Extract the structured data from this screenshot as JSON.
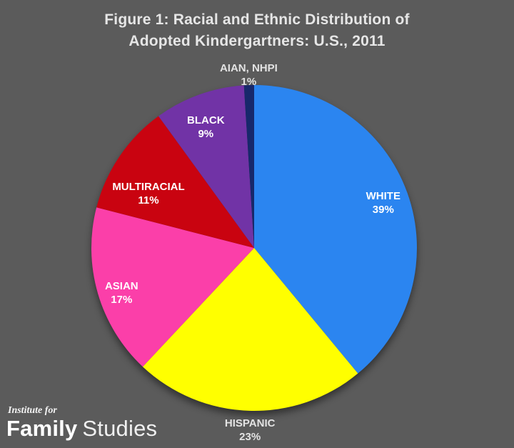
{
  "title": {
    "line1": "Figure 1: Racial and Ethnic Distribution of",
    "line2": "Adopted Kindergartners: U.S., 2011"
  },
  "chart_data": {
    "type": "pie",
    "title": "Figure 1: Racial and Ethnic Distribution of Adopted Kindergartners: U.S., 2011",
    "units": "percent",
    "legend_position": "none",
    "labels_on_slices": true,
    "start": "12 o'clock, clockwise",
    "categories": [
      "WHITE",
      "HISPANIC",
      "ASIAN",
      "MULTIRACIAL",
      "BLACK",
      "AIAN, NHPI"
    ],
    "values": [
      39,
      23,
      17,
      11,
      9,
      1
    ],
    "slices": [
      {
        "label": "WHITE",
        "value": 39,
        "pct_label": "39%",
        "color": "#2B85F0",
        "label_r": 0.84,
        "label_da": 0.5,
        "outside": false
      },
      {
        "label": "HISPANIC",
        "value": 23,
        "pct_label": "23%",
        "color": "#FFFF00",
        "label_r": 1.12,
        "label_da": -0.5,
        "outside": true
      },
      {
        "label": "ASIAN",
        "value": 17,
        "pct_label": "17%",
        "color": "#FB3FA9",
        "label_r": 0.86,
        "label_da": -2.5,
        "outside": false
      },
      {
        "label": "MULTIRACIAL",
        "value": 11,
        "pct_label": "11%",
        "color": "#C90310",
        "label_r": 0.73,
        "label_da": -7,
        "outside": false
      },
      {
        "label": "BLACK",
        "value": 9,
        "pct_label": "9%",
        "color": "#7133A6",
        "label_r": 0.8,
        "label_da": -2,
        "outside": false
      },
      {
        "label": "AIAN, NHPI",
        "value": 1,
        "pct_label": "1%",
        "color": "#17286B",
        "label_r": 1.06,
        "label_da": 0,
        "outside": true
      }
    ]
  },
  "logo": {
    "line1": "Institute for",
    "word1": "Family",
    "word2": "Studies"
  },
  "colors": {
    "background": "#5B5B5B",
    "title_text": "#E6E6E6",
    "slice_label_text": "#FFFFFF",
    "outside_label_text": "#E3E3E3"
  }
}
